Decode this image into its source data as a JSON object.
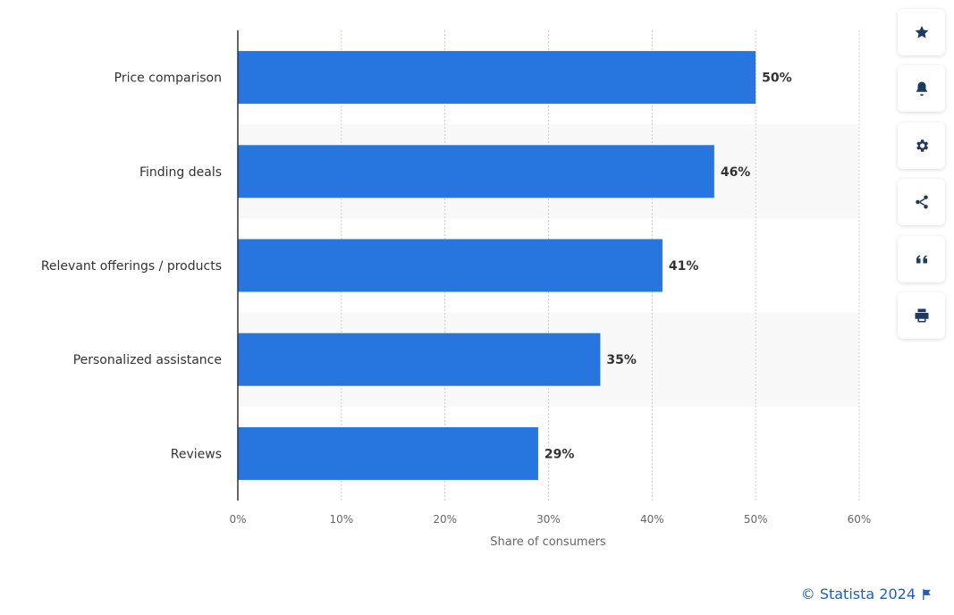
{
  "chart_data": {
    "type": "bar",
    "orientation": "horizontal",
    "categories": [
      "Price comparison",
      "Finding deals",
      "Relevant offerings / products",
      "Personalized assistance",
      "Reviews"
    ],
    "values": [
      50,
      46,
      41,
      35,
      29
    ],
    "value_labels": [
      "50%",
      "46%",
      "41%",
      "35%",
      "29%"
    ],
    "xlabel": "Share of consumers",
    "xlim": [
      0,
      60
    ],
    "xticks": [
      0,
      10,
      20,
      30,
      40,
      50,
      60
    ],
    "xtick_labels": [
      "0%",
      "10%",
      "20%",
      "30%",
      "40%",
      "50%",
      "60%"
    ],
    "grid": true,
    "bar_color": "#2775de"
  },
  "toolbar": {
    "icons": [
      "star-icon",
      "bell-icon",
      "gear-icon",
      "share-icon",
      "quote-icon",
      "print-icon"
    ]
  },
  "credit": {
    "text": "© Statista 2024"
  }
}
